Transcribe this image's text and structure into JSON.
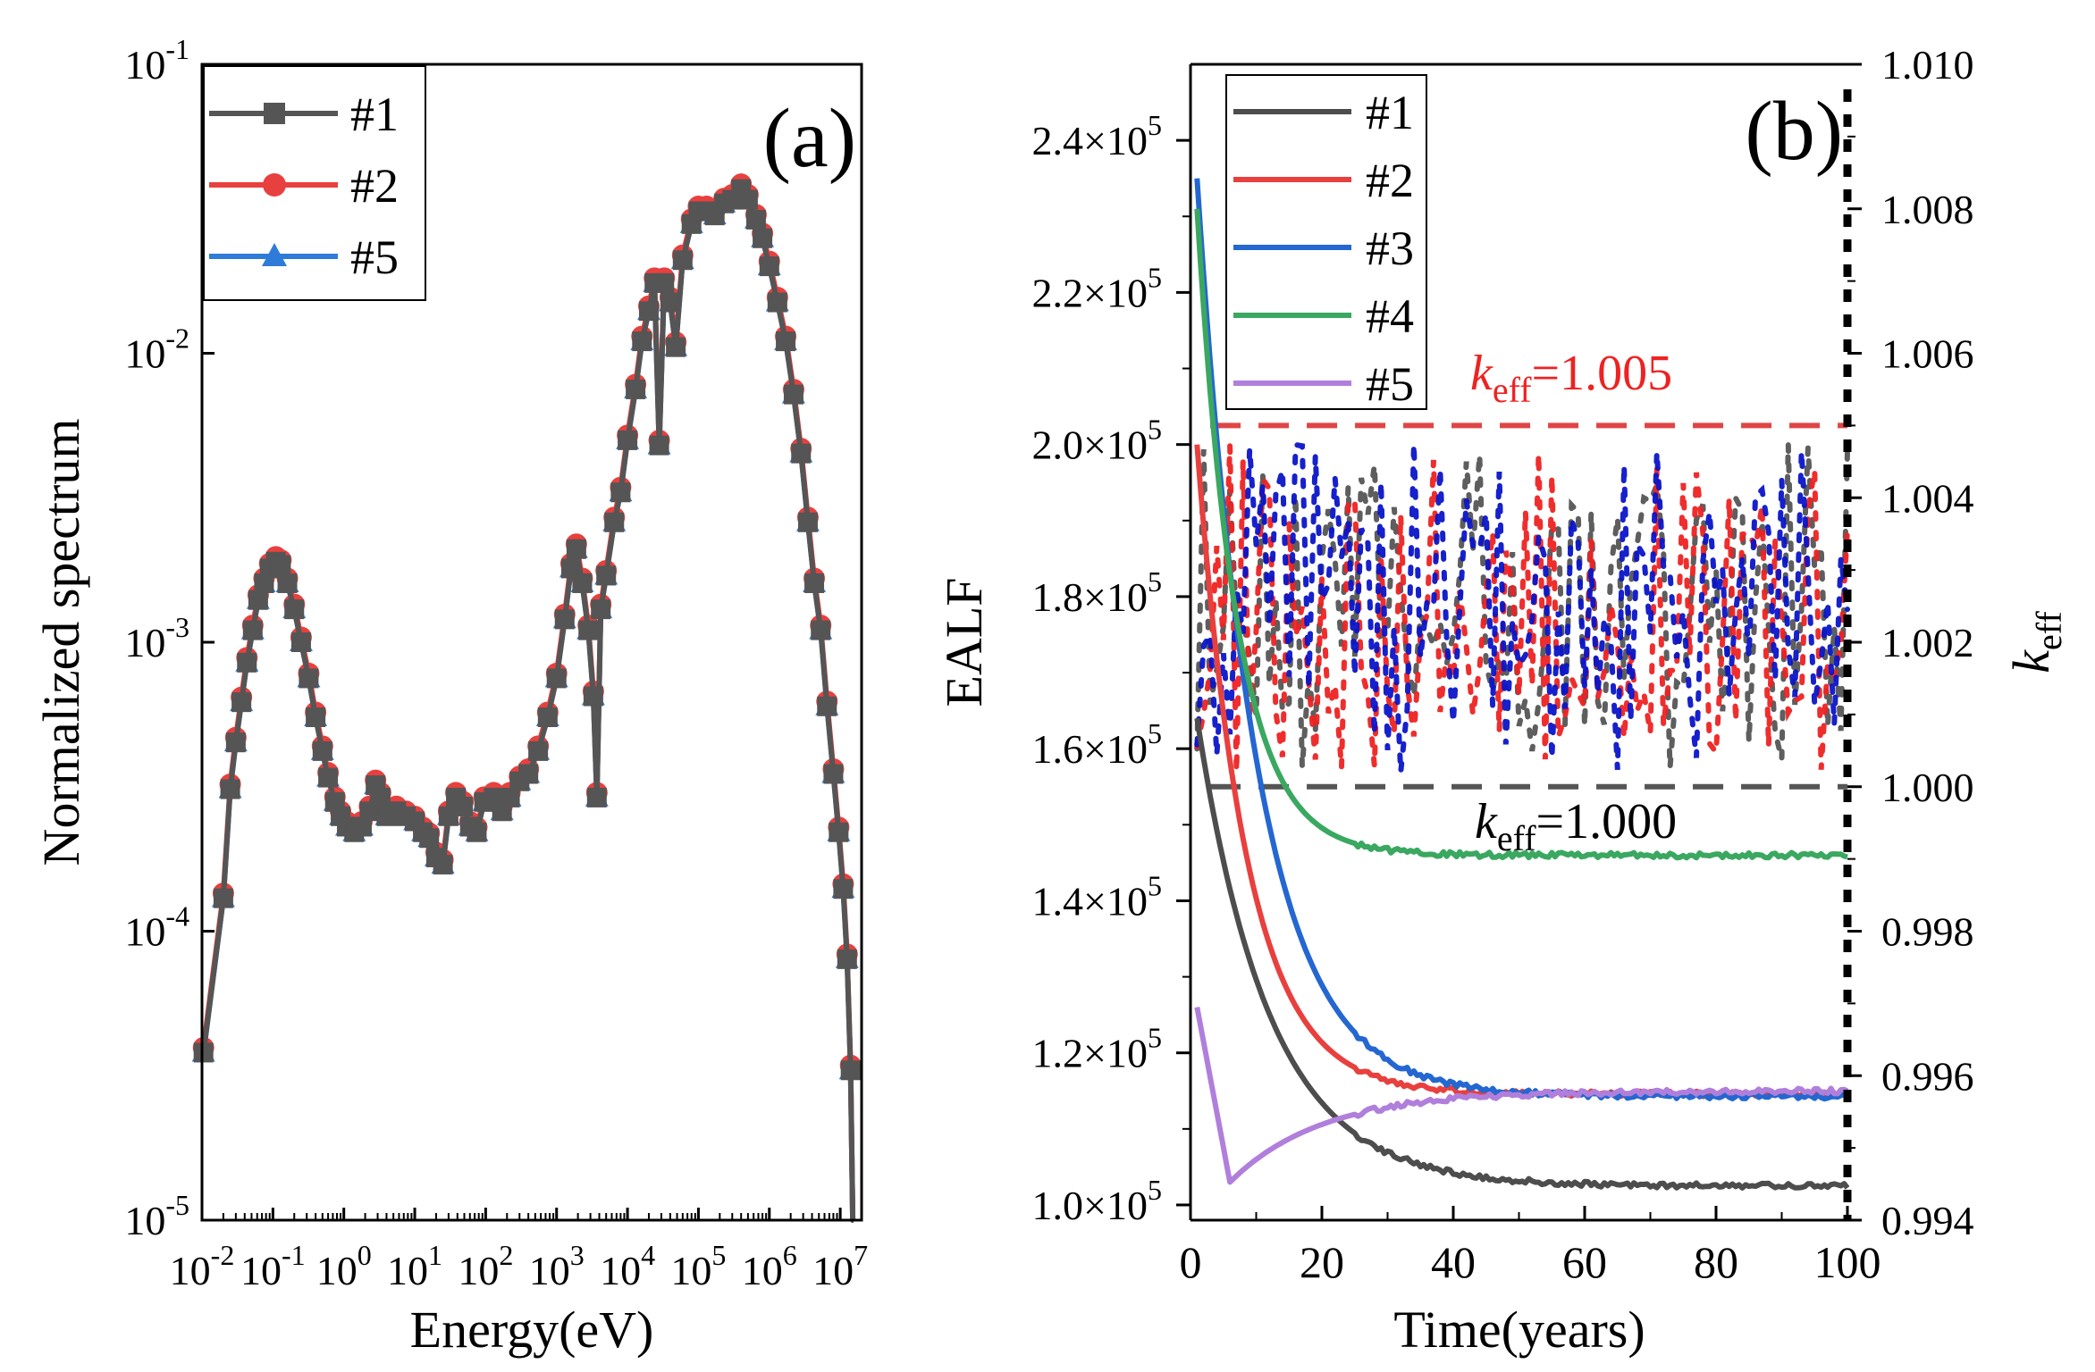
{
  "chart_data": [
    {
      "id": "a",
      "type": "line",
      "panel_label": "(a)",
      "xlabel": "Energy(eV)",
      "ylabel": "Normalized spectrum",
      "xscale": "log",
      "yscale": "log",
      "xlim": [
        0.01,
        20000000
      ],
      "ylim": [
        1e-05,
        0.1
      ],
      "x_ticks": [
        {
          "value": 0.01,
          "base": "10",
          "exp": "-2"
        },
        {
          "value": 0.1,
          "base": "10",
          "exp": "-1"
        },
        {
          "value": 1,
          "base": "10",
          "exp": "0"
        },
        {
          "value": 10,
          "base": "10",
          "exp": "1"
        },
        {
          "value": 100,
          "base": "10",
          "exp": "2"
        },
        {
          "value": 1000,
          "base": "10",
          "exp": "3"
        },
        {
          "value": 10000,
          "base": "10",
          "exp": "4"
        },
        {
          "value": 100000,
          "base": "10",
          "exp": "5"
        },
        {
          "value": 1000000,
          "base": "10",
          "exp": "6"
        },
        {
          "value": 10000000,
          "base": "10",
          "exp": "7"
        }
      ],
      "y_ticks": [
        {
          "value": 1e-05,
          "base": "10",
          "exp": "-5"
        },
        {
          "value": 0.0001,
          "base": "10",
          "exp": "-4"
        },
        {
          "value": 0.001,
          "base": "10",
          "exp": "-3"
        },
        {
          "value": 0.01,
          "base": "10",
          "exp": "-2"
        },
        {
          "value": 0.1,
          "base": "10",
          "exp": "-1"
        }
      ],
      "legend_position": "top-left",
      "series": [
        {
          "name": "#1",
          "color": "#555555",
          "marker": "square",
          "scale": 1.0
        },
        {
          "name": "#2",
          "color": "#e8403e",
          "marker": "circle",
          "scale": 1.04
        },
        {
          "name": "#5",
          "color": "#2f7bd9",
          "marker": "triangle",
          "scale": 1.0
        }
      ],
      "spectrum_points": [
        [
          0.0105,
          3.8e-05
        ],
        [
          0.02,
          0.00013
        ],
        [
          0.025,
          0.00031
        ],
        [
          0.03,
          0.00045
        ],
        [
          0.036,
          0.00062
        ],
        [
          0.043,
          0.00085
        ],
        [
          0.052,
          0.0011
        ],
        [
          0.062,
          0.0014
        ],
        [
          0.075,
          0.0016
        ],
        [
          0.09,
          0.0018
        ],
        [
          0.11,
          0.0019
        ],
        [
          0.13,
          0.00185
        ],
        [
          0.16,
          0.0016
        ],
        [
          0.2,
          0.0013
        ],
        [
          0.25,
          0.001
        ],
        [
          0.32,
          0.00075
        ],
        [
          0.4,
          0.00055
        ],
        [
          0.5,
          0.00042
        ],
        [
          0.6,
          0.00034
        ],
        [
          0.75,
          0.00028
        ],
        [
          0.9,
          0.00025
        ],
        [
          1.1,
          0.00023
        ],
        [
          1.4,
          0.00022
        ],
        [
          1.8,
          0.00023
        ],
        [
          2.3,
          0.00026
        ],
        [
          2.8,
          0.00032
        ],
        [
          3.3,
          0.00029
        ],
        [
          4.0,
          0.00025
        ],
        [
          5.5,
          0.00026
        ],
        [
          7.5,
          0.00025
        ],
        [
          10,
          0.00024
        ],
        [
          13,
          0.00022
        ],
        [
          16,
          0.00021
        ],
        [
          20,
          0.00018
        ],
        [
          25,
          0.00017
        ],
        [
          30,
          0.00025
        ],
        [
          38,
          0.00029
        ],
        [
          48,
          0.00027
        ],
        [
          60,
          0.00023
        ],
        [
          75,
          0.00022
        ],
        [
          95,
          0.00028
        ],
        [
          130,
          0.00029
        ],
        [
          170,
          0.00026
        ],
        [
          220,
          0.00029
        ],
        [
          300,
          0.00033
        ],
        [
          400,
          0.00035
        ],
        [
          550,
          0.00042
        ],
        [
          750,
          0.00055
        ],
        [
          1000,
          0.00075
        ],
        [
          1300,
          0.0012
        ],
        [
          1600,
          0.0018
        ],
        [
          1900,
          0.0021
        ],
        [
          2300,
          0.0016
        ],
        [
          2800,
          0.0011
        ],
        [
          3300,
          0.00065
        ],
        [
          3700,
          0.00029
        ],
        [
          4200,
          0.0013
        ],
        [
          5000,
          0.0017
        ],
        [
          6500,
          0.0026
        ],
        [
          8000,
          0.0033
        ],
        [
          10000,
          0.005
        ],
        [
          13000,
          0.0075
        ],
        [
          16000,
          0.011
        ],
        [
          20000,
          0.014
        ],
        [
          24000,
          0.0175
        ],
        [
          28000,
          0.0048
        ],
        [
          33000,
          0.0175
        ],
        [
          40000,
          0.015
        ],
        [
          48000,
          0.0105
        ],
        [
          60000,
          0.021
        ],
        [
          80000,
          0.028
        ],
        [
          100000,
          0.031
        ],
        [
          130000,
          0.031
        ],
        [
          170000,
          0.03
        ],
        [
          230000,
          0.033
        ],
        [
          300000,
          0.034
        ],
        [
          400000,
          0.037
        ],
        [
          500000,
          0.034
        ],
        [
          650000,
          0.029
        ],
        [
          800000,
          0.025
        ],
        [
          1000000,
          0.02
        ],
        [
          1300000,
          0.015
        ],
        [
          1700000,
          0.011
        ],
        [
          2200000,
          0.0072
        ],
        [
          2800000,
          0.0045
        ],
        [
          3500000,
          0.0026
        ],
        [
          4300000,
          0.0016
        ],
        [
          5300000,
          0.0011
        ],
        [
          6500000,
          0.0006
        ],
        [
          8000000,
          0.00035
        ],
        [
          9500000,
          0.00022
        ],
        [
          11000000,
          0.00014
        ],
        [
          12500000,
          8e-05
        ],
        [
          14000000,
          3.3e-05
        ],
        [
          15000000,
          8e-06
        ]
      ]
    },
    {
      "id": "b",
      "type": "line",
      "panel_label": "(b)",
      "xlabel": "Time(years)",
      "ylabel": "EALF",
      "y2label_base": "k",
      "y2label_sub": "eff",
      "xlim": [
        0,
        100
      ],
      "ylim": [
        98000,
        250000
      ],
      "y2lim": [
        0.994,
        1.01
      ],
      "x_ticks": [
        0,
        20,
        40,
        60,
        80,
        100
      ],
      "y_ticks": [
        {
          "value": 100000,
          "mant": "1.0×10",
          "exp": "5"
        },
        {
          "value": 120000,
          "mant": "1.2×10",
          "exp": "5"
        },
        {
          "value": 140000,
          "mant": "1.4×10",
          "exp": "5"
        },
        {
          "value": 160000,
          "mant": "1.6×10",
          "exp": "5"
        },
        {
          "value": 180000,
          "mant": "1.8×10",
          "exp": "5"
        },
        {
          "value": 200000,
          "mant": "2.0×10",
          "exp": "5"
        },
        {
          "value": 220000,
          "mant": "2.2×10",
          "exp": "5"
        },
        {
          "value": 240000,
          "mant": "2.4×10",
          "exp": "5"
        }
      ],
      "y2_ticks": [
        "0.994",
        "0.996",
        "0.998",
        "1.000",
        "1.002",
        "1.004",
        "1.006",
        "1.008",
        "1.010"
      ],
      "legend_position": "top-left",
      "series": [
        {
          "name": "#1",
          "color": "#4d4d4d",
          "start": 164000,
          "end": 102500,
          "tau": 11
        },
        {
          "name": "#2",
          "color": "#e8403e",
          "start": 200000,
          "end": 114600,
          "tau": 7.5
        },
        {
          "name": "#3",
          "color": "#2467d1",
          "start": 235000,
          "end": 114300,
          "tau": 9
        },
        {
          "name": "#4",
          "color": "#3aa860",
          "start": 231000,
          "end": 146000,
          "tau": 6
        },
        {
          "name": "#5",
          "color": "#b07fdc",
          "start": 126000,
          "end": 115000,
          "tau": 0
        }
      ],
      "keff_series": [
        {
          "name": "#1",
          "color": "#555555"
        },
        {
          "name": "#2",
          "color": "#ee2222"
        },
        {
          "name": "#3",
          "color": "#0a15c8"
        }
      ],
      "annotations": {
        "upper": {
          "base": "k",
          "sub": "eff",
          "text": "=1.005",
          "value": 1.005,
          "color": "#ee2222"
        },
        "lower": {
          "base": "k",
          "sub": "eff",
          "text": "=1.000",
          "value": 1.0,
          "color": "#000000"
        }
      }
    }
  ]
}
